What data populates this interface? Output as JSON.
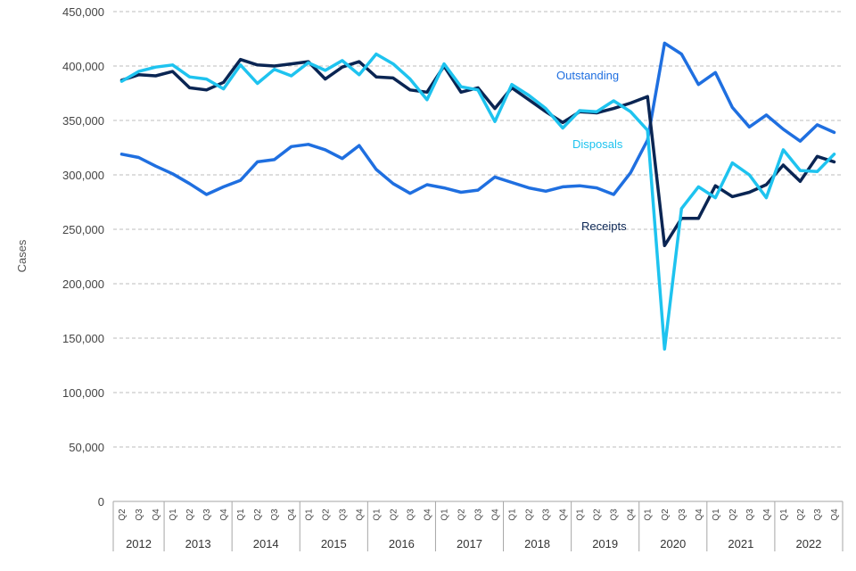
{
  "chart_data": {
    "type": "line",
    "title": "",
    "xlabel": "",
    "ylabel": "Cases",
    "ylim": [
      0,
      450000
    ],
    "ytick_step": 50000,
    "grid": true,
    "legend": "inline labels",
    "quarters": [
      "Q2",
      "Q3",
      "Q4",
      "Q1",
      "Q2",
      "Q3",
      "Q4",
      "Q1",
      "Q2",
      "Q3",
      "Q4",
      "Q1",
      "Q2",
      "Q3",
      "Q4",
      "Q1",
      "Q2",
      "Q3",
      "Q4",
      "Q1",
      "Q2",
      "Q3",
      "Q4",
      "Q1",
      "Q2",
      "Q3",
      "Q4",
      "Q1",
      "Q2",
      "Q3",
      "Q4",
      "Q1",
      "Q2",
      "Q3",
      "Q4",
      "Q1",
      "Q2",
      "Q3",
      "Q4",
      "Q1",
      "Q2",
      "Q3",
      "Q4"
    ],
    "years": [
      {
        "label": "2012",
        "start": 0,
        "end": 2
      },
      {
        "label": "2013",
        "start": 3,
        "end": 6
      },
      {
        "label": "2014",
        "start": 7,
        "end": 10
      },
      {
        "label": "2015",
        "start": 11,
        "end": 14
      },
      {
        "label": "2016",
        "start": 15,
        "end": 18
      },
      {
        "label": "2017",
        "start": 19,
        "end": 22
      },
      {
        "label": "2018",
        "start": 23,
        "end": 26
      },
      {
        "label": "2019",
        "start": 27,
        "end": 30
      },
      {
        "label": "2020",
        "start": 31,
        "end": 34
      },
      {
        "label": "2021",
        "start": 35,
        "end": 38
      },
      {
        "label": "2022",
        "start": 39,
        "end": 42
      }
    ],
    "series": [
      {
        "name": "Outstanding",
        "color": "#1f6fe0",
        "values": [
          319000,
          316000,
          308000,
          301000,
          292000,
          282000,
          289000,
          295000,
          312000,
          314000,
          326000,
          328000,
          323000,
          315000,
          327000,
          305000,
          292000,
          283000,
          291000,
          288000,
          284000,
          286000,
          298000,
          293000,
          288000,
          285000,
          289000,
          290000,
          288000,
          282000,
          302000,
          332000,
          421000,
          411000,
          383000,
          394000,
          362000,
          344000,
          355000,
          342000,
          331000,
          346000,
          339000
        ]
      },
      {
        "name": "Receipts",
        "color": "#0a2553",
        "values": [
          387000,
          392000,
          391000,
          395000,
          380000,
          378000,
          385000,
          406000,
          401000,
          400000,
          402000,
          404000,
          388000,
          399000,
          404000,
          390000,
          389000,
          378000,
          376000,
          400000,
          376000,
          380000,
          361000,
          380000,
          369000,
          358000,
          348000,
          358000,
          357000,
          361000,
          366000,
          372000,
          235000,
          260000,
          260000,
          290000,
          280000,
          284000,
          291000,
          309000,
          294000,
          317000,
          312000
        ]
      },
      {
        "name": "Disposals",
        "color": "#1ec3ef",
        "values": [
          386000,
          395000,
          399000,
          401000,
          390000,
          388000,
          379000,
          401000,
          384000,
          397000,
          391000,
          403000,
          396000,
          405000,
          392000,
          411000,
          402000,
          388000,
          369000,
          402000,
          381000,
          378000,
          349000,
          383000,
          373000,
          361000,
          343000,
          359000,
          358000,
          368000,
          358000,
          341000,
          140000,
          269000,
          289000,
          279000,
          311000,
          300000,
          279000,
          323000,
          304000,
          303000,
          319000
        ]
      }
    ],
    "annotations": [
      {
        "text": "Outstanding",
        "color": "#1f6fe0"
      },
      {
        "text": "Disposals",
        "color": "#1ec3ef"
      },
      {
        "text": "Receipts",
        "color": "#0a2553"
      }
    ]
  }
}
